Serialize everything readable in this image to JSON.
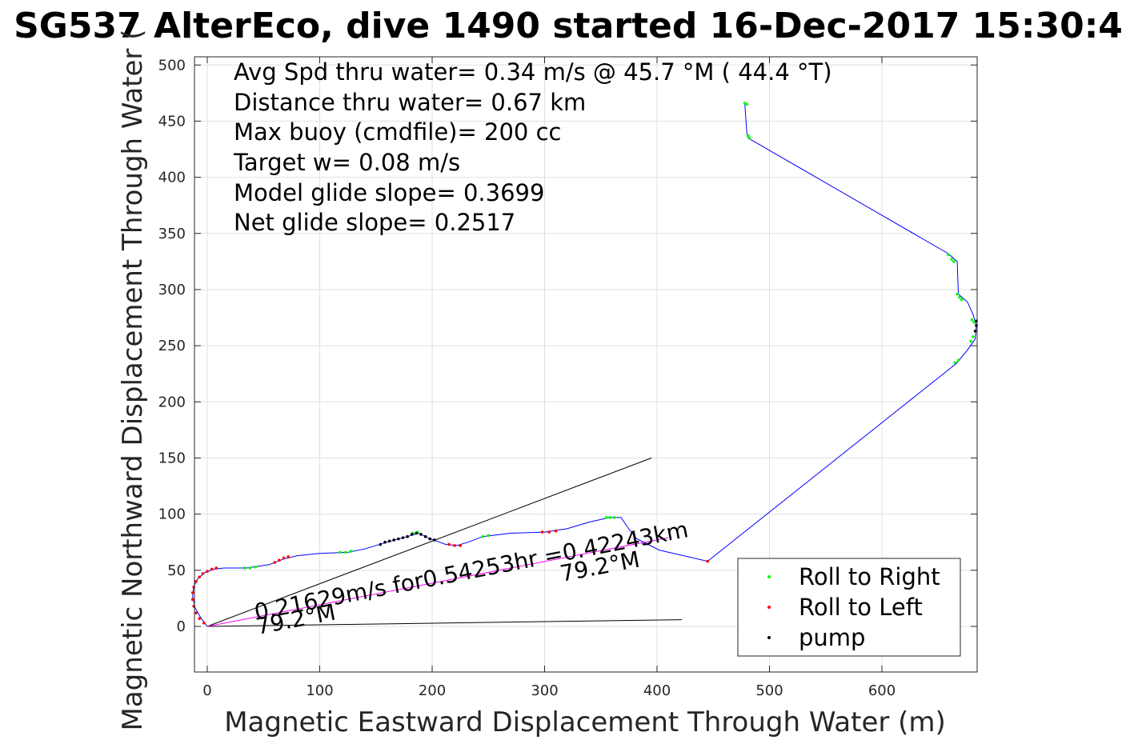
{
  "chart_data": {
    "type": "line",
    "title": "SG537 AlterEco, dive 1490 started 16-Dec-2017 15:30:4",
    "xlabel": "Magnetic Eastward Displacement Through Water (m)",
    "ylabel": "Magnetic Northward Displacement Through Water (",
    "xlim": [
      -12,
      682
    ],
    "ylim": [
      -40,
      505
    ],
    "xticks": [
      0,
      100,
      200,
      300,
      400,
      500,
      600
    ],
    "yticks": [
      0,
      50,
      100,
      150,
      200,
      250,
      300,
      350,
      400,
      450,
      500
    ],
    "grid": true,
    "info_lines": [
      "Avg Spd thru water=  0.34 m/s @  45.7 °M ( 44.4 °T)",
      "Distance thru water=  0.67 km",
      "Max buoy (cmdfile)= 200 cc",
      "Target w= 0.08 m/s",
      "Model glide slope= 0.3699",
      "Net glide slope= 0.2517"
    ],
    "track": {
      "name": "glider track",
      "color": "#0000ff",
      "points": [
        [
          0,
          0
        ],
        [
          -6,
          8
        ],
        [
          -11,
          17
        ],
        [
          -13,
          27
        ],
        [
          -12,
          36
        ],
        [
          -8,
          43
        ],
        [
          -2,
          48
        ],
        [
          6,
          51
        ],
        [
          15,
          52
        ],
        [
          35,
          52
        ],
        [
          55,
          55
        ],
        [
          68,
          60
        ],
        [
          80,
          63
        ],
        [
          100,
          65
        ],
        [
          125,
          66
        ],
        [
          140,
          69
        ],
        [
          160,
          75
        ],
        [
          178,
          80
        ],
        [
          188,
          83
        ],
        [
          196,
          79
        ],
        [
          204,
          76
        ],
        [
          212,
          73
        ],
        [
          222,
          72
        ],
        [
          232,
          75
        ],
        [
          245,
          80
        ],
        [
          270,
          83
        ],
        [
          300,
          84
        ],
        [
          320,
          87
        ],
        [
          340,
          93
        ],
        [
          358,
          97
        ],
        [
          368,
          97
        ],
        [
          374,
          88
        ],
        [
          382,
          78
        ],
        [
          402,
          68
        ],
        [
          445,
          58
        ],
        [
          666,
          234
        ],
        [
          676,
          246
        ],
        [
          683,
          256
        ],
        [
          684,
          268
        ],
        [
          681,
          278
        ],
        [
          676,
          289
        ],
        [
          668,
          296
        ],
        [
          667,
          325
        ],
        [
          659,
          332
        ],
        [
          481,
          435
        ],
        [
          480,
          438
        ],
        [
          478,
          466
        ]
      ]
    },
    "markers": {
      "roll_right": {
        "name": "Roll to Right",
        "color": "#00ff00",
        "points": [
          [
            33,
            52
          ],
          [
            38,
            52
          ],
          [
            43,
            53
          ],
          [
            118,
            66
          ],
          [
            123,
            66
          ],
          [
            128,
            67
          ],
          [
            183,
            83
          ],
          [
            187,
            84
          ],
          [
            245,
            80
          ],
          [
            250,
            81
          ],
          [
            355,
            97
          ],
          [
            358,
            97
          ],
          [
            362,
            97
          ],
          [
            478,
            466
          ],
          [
            480,
            465
          ],
          [
            481,
            437
          ],
          [
            482,
            435
          ],
          [
            659,
            331
          ],
          [
            662,
            327
          ],
          [
            664,
            325
          ],
          [
            667,
            296
          ],
          [
            669,
            293
          ],
          [
            671,
            291
          ],
          [
            680,
            273
          ],
          [
            682,
            271
          ],
          [
            681,
            258
          ],
          [
            679,
            254
          ],
          [
            668,
            237
          ],
          [
            665,
            235
          ]
        ]
      },
      "roll_left": {
        "name": "Roll to Left",
        "color": "#ff0000",
        "points": [
          [
            -3,
            3
          ],
          [
            -7,
            7
          ],
          [
            -10,
            12
          ],
          [
            -12,
            18
          ],
          [
            -13,
            24
          ],
          [
            -13,
            30
          ],
          [
            -12,
            35
          ],
          [
            -10,
            40
          ],
          [
            -7,
            44
          ],
          [
            -4,
            47
          ],
          [
            0,
            49
          ],
          [
            4,
            51
          ],
          [
            8,
            52
          ],
          [
            60,
            57
          ],
          [
            64,
            59
          ],
          [
            68,
            61
          ],
          [
            72,
            62
          ],
          [
            215,
            73
          ],
          [
            220,
            72
          ],
          [
            225,
            72
          ],
          [
            298,
            84
          ],
          [
            304,
            84
          ],
          [
            310,
            85
          ],
          [
            445,
            58
          ]
        ]
      },
      "pump": {
        "name": "pump",
        "color": "#000000",
        "points": [
          [
            154,
            73
          ],
          [
            158,
            75
          ],
          [
            162,
            76
          ],
          [
            166,
            77
          ],
          [
            170,
            78
          ],
          [
            174,
            79
          ],
          [
            178,
            80
          ],
          [
            182,
            82
          ],
          [
            186,
            83
          ],
          [
            190,
            82
          ],
          [
            194,
            80
          ],
          [
            198,
            78
          ],
          [
            202,
            77
          ],
          [
            683,
            263
          ],
          [
            684,
            268
          ],
          [
            684,
            272
          ]
        ]
      }
    },
    "reference_lines": [
      {
        "color": "#000000",
        "points": [
          [
            0,
            0
          ],
          [
            395,
            150
          ]
        ]
      },
      {
        "color": "#000000",
        "points": [
          [
            0,
            0
          ],
          [
            422,
            6
          ]
        ]
      },
      {
        "color": "#ff00ff",
        "points": [
          [
            0,
            0
          ],
          [
            410,
            79
          ]
        ]
      }
    ],
    "annotations": [
      "0.21629m/s for0.54253hr =0.42243km",
      "79.2°M",
      "79.2°M"
    ],
    "legend": {
      "placement": "bottom-right",
      "entries": [
        {
          "label": "Roll to Right",
          "color": "#00ff00"
        },
        {
          "label": "Roll to Left",
          "color": "#ff0000"
        },
        {
          "label": "pump",
          "color": "#000000"
        }
      ]
    }
  }
}
